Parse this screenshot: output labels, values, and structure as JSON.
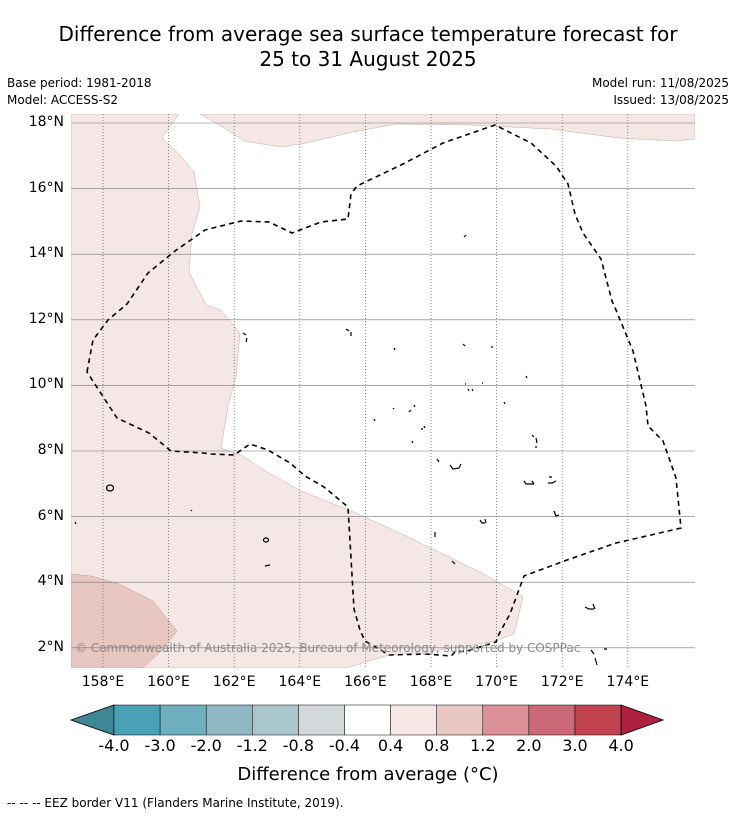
{
  "title_line1": "Difference from average sea surface temperature forecast for",
  "title_line2": "25 to 31 August 2025",
  "base_period": "Base period: 1981-2018",
  "model": "Model: ACCESS-S2",
  "model_run": "Model run: 11/08/2025",
  "issued": "Issued: 13/08/2025",
  "map": {
    "lat_labels": [
      "18°N",
      "16°N",
      "14°N",
      "12°N",
      "10°N",
      "8°N",
      "6°N",
      "4°N",
      "2°N"
    ],
    "lat_values": [
      18,
      16,
      14,
      12,
      10,
      8,
      6,
      4,
      2
    ],
    "lon_labels": [
      "158°E",
      "160°E",
      "162°E",
      "164°E",
      "166°E",
      "168°E",
      "170°E",
      "172°E",
      "174°E"
    ],
    "lon_values": [
      158,
      160,
      162,
      164,
      166,
      168,
      170,
      172,
      174
    ],
    "copyright": "© Commonwealth of Australia 2025, Bureau of Meteorology, supported by COSPPac"
  },
  "colorbar": {
    "tick_labels": [
      "-4.0",
      "-3.0",
      "-2.0",
      "-1.2",
      "-0.8",
      "-0.4",
      "0.4",
      "0.8",
      "1.2",
      "2.0",
      "3.0",
      "4.0"
    ],
    "colors": [
      "#3f8795",
      "#4aa0b5",
      "#6fb0c0",
      "#8fb9c5",
      "#a9c6cb",
      "#d3d8da",
      "#ffffff",
      "#f5e7e6",
      "#e9c7c4",
      "#dc9199",
      "#cb6878",
      "#c1434f",
      "#b0203f"
    ],
    "label": "Difference from average (°C)"
  },
  "footer": "--  --  -- EEZ border V11 (Flanders Marine Institute, 2019)."
}
